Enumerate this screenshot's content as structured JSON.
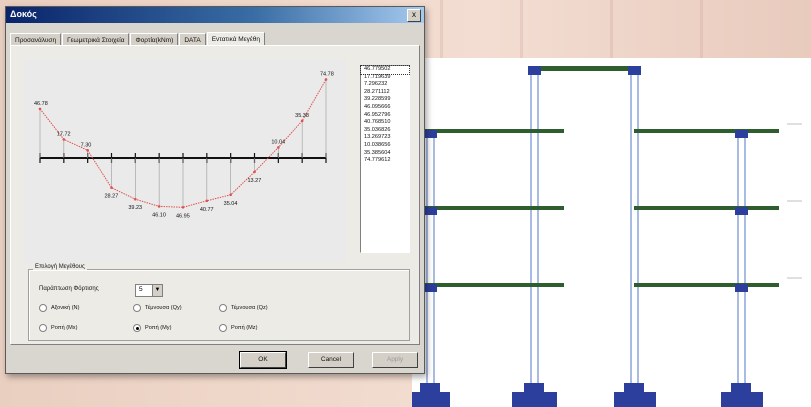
{
  "dialog": {
    "title": "Δοκός",
    "close_glyph": "x",
    "tabs": [
      "Προσανάλυση",
      "Γεωμετρικά Στοιχεία",
      "Φορτία(kNm)",
      "DATA",
      "Εντατικά Μεγέθη"
    ],
    "active_tab": 4
  },
  "diagram": {
    "labels": [
      "46.78",
      "17.72",
      "7.30",
      "28.27",
      "39.23",
      "46.10",
      "46.95",
      "40.77",
      "35.04",
      "13.27",
      "10.04",
      "35.38",
      "74.78"
    ]
  },
  "moment_list": {
    "items": [
      "46.779502",
      "17.719639",
      "7.296232",
      "28.271112",
      "39.228599",
      "46.095666",
      "46.952796",
      "40.768510",
      "35.036826",
      "13.269723",
      "10.038656",
      "35.385604",
      "74.779612"
    ],
    "selected_index": 0
  },
  "group": {
    "title": "Επιλογή Μεγέθους",
    "position_label": "Παράπτωση Φόρτισης",
    "position_value": "5",
    "radios": [
      {
        "label": "Αξονική (N)",
        "checked": false
      },
      {
        "label": "Τέμνουσα (Qy)",
        "checked": false
      },
      {
        "label": "Τέμνουσα (Qz)",
        "checked": false
      },
      {
        "label": "Ροπή (Mx)",
        "checked": false
      },
      {
        "label": "Ροπή (My)",
        "checked": true
      },
      {
        "label": "Ροπή (Mz)",
        "checked": false
      }
    ]
  },
  "buttons": {
    "ok": "OK",
    "cancel": "Cancel",
    "apply": "Apply"
  },
  "colors": {
    "curve": "#e05050",
    "beam": "#2e5e2e",
    "support": "#2d3f9c",
    "column": "#6f8fd0"
  }
}
